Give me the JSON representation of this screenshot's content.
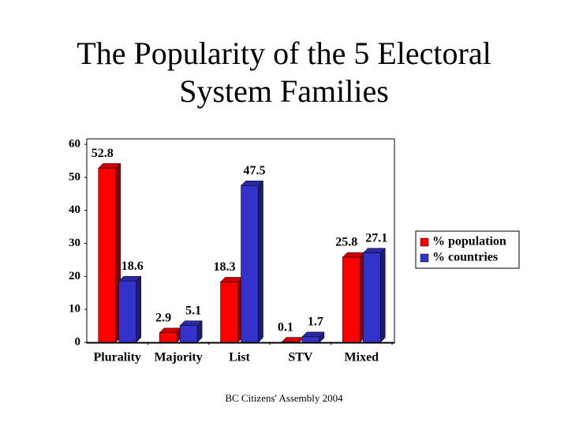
{
  "chart_data": {
    "type": "bar",
    "title": "The Popularity of the 5 Electoral System Families",
    "categories": [
      "Plurality",
      "Majority",
      "List",
      "STV",
      "Mixed"
    ],
    "series": [
      {
        "name": "% population",
        "color": "#ff0000",
        "values": [
          52.8,
          2.9,
          18.3,
          0.1,
          25.8
        ]
      },
      {
        "name": "% countries",
        "color": "#3333cc",
        "values": [
          18.6,
          5.1,
          47.5,
          1.7,
          27.1
        ]
      }
    ],
    "ylim": [
      0,
      60
    ],
    "yticks": [
      0,
      10,
      20,
      30,
      40,
      50,
      60
    ],
    "footer": "BC Citizens' Assembly 2004"
  }
}
